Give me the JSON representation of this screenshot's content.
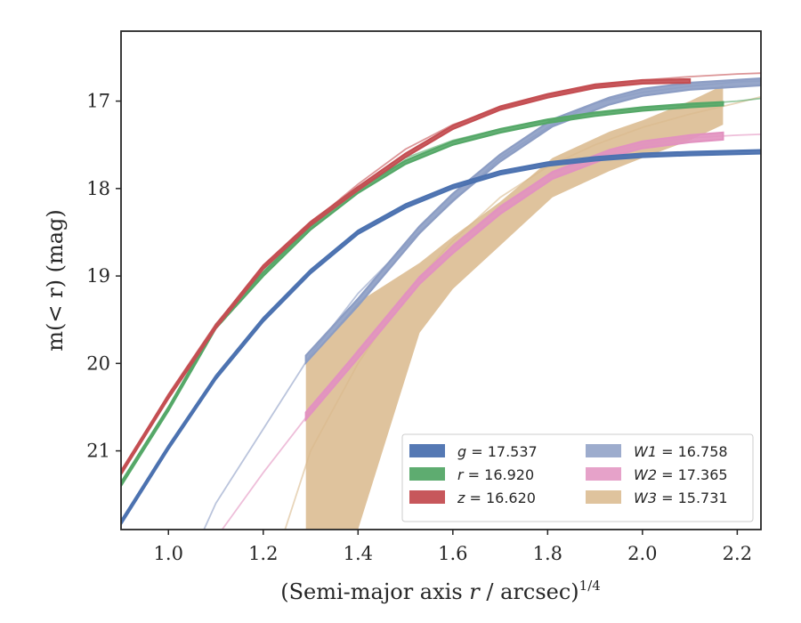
{
  "chart_data": {
    "type": "line",
    "title": "",
    "xlabel": "(Semi-major axis r / arcsec)",
    "xlabel_italic_part": "r",
    "xlabel_exponent": "1/4",
    "ylabel": "m(< r) (mag)",
    "xlim": [
      0.9,
      2.25
    ],
    "ylim": [
      21.9,
      16.2
    ],
    "y_inverted": true,
    "xticks": [
      1.0,
      1.2,
      1.4,
      1.6,
      1.8,
      2.0,
      2.2
    ],
    "xtick_labels": [
      "1.0",
      "1.2",
      "1.4",
      "1.6",
      "1.8",
      "2.0",
      "2.2"
    ],
    "yticks": [
      17,
      18,
      19,
      20,
      21
    ],
    "ytick_labels": [
      "17",
      "18",
      "19",
      "20",
      "21"
    ],
    "grid": false,
    "legend_position": "lower-right",
    "series": [
      {
        "name": "g = 17.537",
        "band": "g",
        "value": "17.537",
        "color": "#4c72b0",
        "model_x": [
          0.9,
          1.0,
          1.1,
          1.2,
          1.3,
          1.4,
          1.5,
          1.6,
          1.7,
          1.8,
          1.9,
          2.0,
          2.1,
          2.2,
          2.25
        ],
        "model_y": [
          21.8,
          20.95,
          20.15,
          19.5,
          18.95,
          18.5,
          18.2,
          17.98,
          17.82,
          17.72,
          17.66,
          17.62,
          17.6,
          17.58,
          17.57
        ],
        "data_x": [
          0.9,
          1.0,
          1.1,
          1.2,
          1.3,
          1.4,
          1.5,
          1.6,
          1.7,
          1.8,
          1.9,
          2.0,
          2.1,
          2.25
        ],
        "data_y": [
          21.82,
          20.96,
          20.16,
          19.5,
          18.95,
          18.5,
          18.2,
          17.98,
          17.82,
          17.72,
          17.66,
          17.62,
          17.6,
          17.58
        ],
        "band_halfwidth": 0.02
      },
      {
        "name": "r = 16.920",
        "band": "r",
        "value": "16.920",
        "color": "#55a868",
        "model_x": [
          0.9,
          1.0,
          1.1,
          1.2,
          1.3,
          1.4,
          1.5,
          1.6,
          1.7,
          1.8,
          1.9,
          2.0,
          2.1,
          2.2,
          2.25
        ],
        "model_y": [
          21.38,
          20.5,
          19.55,
          18.95,
          18.4,
          18.0,
          17.65,
          17.45,
          17.32,
          17.22,
          17.14,
          17.08,
          17.04,
          17.0,
          16.97
        ],
        "data_x": [
          0.9,
          1.0,
          1.1,
          1.2,
          1.3,
          1.4,
          1.5,
          1.6,
          1.7,
          1.8,
          1.9,
          2.0,
          2.1,
          2.17
        ],
        "data_y": [
          21.38,
          20.52,
          19.58,
          18.98,
          18.45,
          18.03,
          17.7,
          17.48,
          17.34,
          17.23,
          17.15,
          17.09,
          17.05,
          17.03
        ],
        "band_halfwidth": 0.02
      },
      {
        "name": "z = 16.620",
        "band": "z",
        "value": "16.620",
        "color": "#c44e52",
        "model_x": [
          0.9,
          1.0,
          1.1,
          1.2,
          1.3,
          1.4,
          1.5,
          1.6,
          1.7,
          1.8,
          1.9,
          2.0,
          2.1,
          2.2,
          2.25
        ],
        "model_y": [
          21.25,
          20.35,
          19.55,
          18.9,
          18.4,
          17.95,
          17.55,
          17.27,
          17.08,
          16.93,
          16.83,
          16.76,
          16.72,
          16.69,
          16.68
        ],
        "data_x": [
          0.9,
          1.0,
          1.1,
          1.2,
          1.3,
          1.4,
          1.5,
          1.6,
          1.7,
          1.8,
          1.9,
          2.0,
          2.1
        ],
        "data_y": [
          21.25,
          20.38,
          19.58,
          18.9,
          18.4,
          18.0,
          17.62,
          17.3,
          17.08,
          16.94,
          16.83,
          16.78,
          16.77
        ],
        "band_halfwidth": 0.02
      },
      {
        "name": "W1 = 16.758",
        "band": "W1",
        "value": "16.758",
        "color": "#8c9dc4",
        "model_x": [
          1.0,
          1.1,
          1.2,
          1.3,
          1.4,
          1.5,
          1.6,
          1.7,
          1.8,
          1.9,
          2.0,
          2.1,
          2.2,
          2.25
        ],
        "model_y": [
          22.8,
          21.6,
          20.75,
          19.9,
          19.2,
          18.65,
          18.15,
          17.65,
          17.3,
          17.02,
          16.9,
          16.83,
          16.78,
          16.77
        ],
        "data_x": [
          1.29,
          1.4,
          1.53,
          1.6,
          1.7,
          1.81,
          1.93,
          2.0,
          2.1,
          2.25
        ],
        "data_y": [
          19.95,
          19.3,
          18.47,
          18.1,
          17.65,
          17.25,
          17.0,
          16.9,
          16.83,
          16.78
        ],
        "band_halfwidth": 0.04
      },
      {
        "name": "W2 = 17.365",
        "band": "W2",
        "value": "17.365",
        "color": "#e292c0",
        "model_x": [
          1.1,
          1.2,
          1.3,
          1.4,
          1.5,
          1.6,
          1.7,
          1.8,
          1.9,
          2.0,
          2.1,
          2.2,
          2.25
        ],
        "model_y": [
          22.0,
          21.25,
          20.55,
          19.85,
          19.2,
          18.65,
          18.2,
          17.85,
          17.63,
          17.5,
          17.42,
          17.39,
          17.38
        ],
        "data_x": [
          1.29,
          1.4,
          1.53,
          1.6,
          1.7,
          1.81,
          1.93,
          2.0,
          2.1,
          2.17
        ],
        "data_y": [
          20.6,
          19.9,
          19.05,
          18.7,
          18.25,
          17.85,
          17.6,
          17.5,
          17.43,
          17.4
        ],
        "band_halfwidth": 0.04
      },
      {
        "name": "W3 = 15.731",
        "band": "W3",
        "value": "15.731",
        "color": "#d9b98c",
        "model_x": [
          1.24,
          1.3,
          1.4,
          1.5,
          1.6,
          1.7,
          1.8,
          1.9,
          2.0,
          2.1,
          2.2,
          2.25
        ],
        "model_y": [
          22.0,
          21.0,
          20.0,
          19.2,
          18.6,
          18.1,
          17.75,
          17.5,
          17.3,
          17.15,
          17.02,
          16.95
        ],
        "data_x": [
          1.29,
          1.4,
          1.53,
          1.6,
          1.7,
          1.81,
          1.93,
          2.0,
          2.1,
          2.17
        ],
        "data_upper": [
          20.0,
          19.3,
          18.85,
          18.55,
          18.15,
          17.65,
          17.35,
          17.22,
          17.0,
          16.82
        ],
        "data_lower": [
          21.9,
          21.9,
          19.65,
          19.15,
          18.65,
          18.1,
          17.8,
          17.65,
          17.45,
          17.27
        ]
      }
    ]
  }
}
